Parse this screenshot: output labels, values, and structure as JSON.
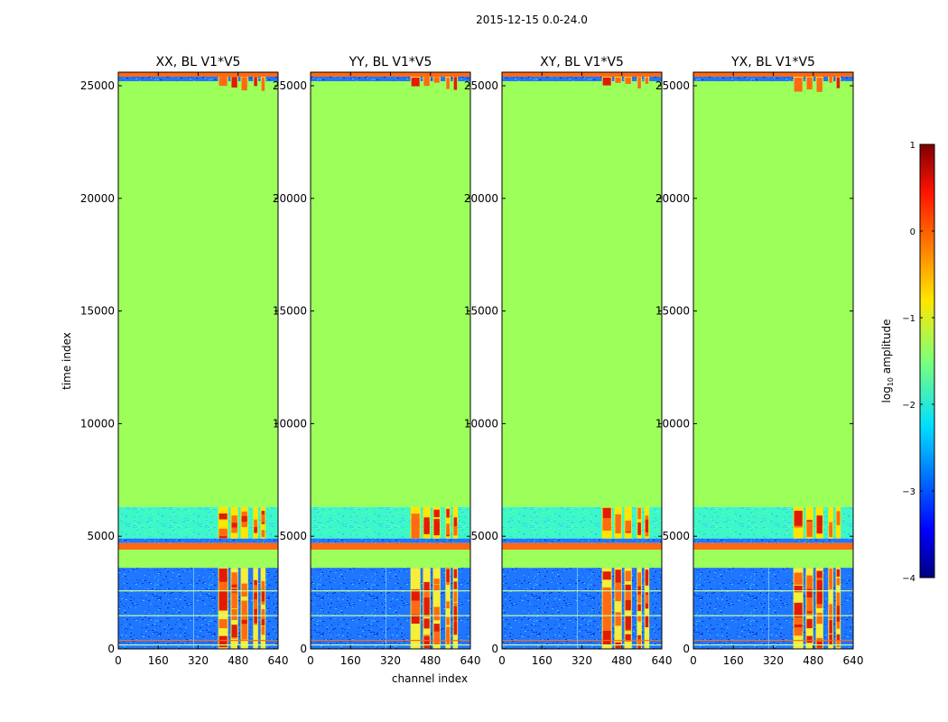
{
  "colors": {
    "background": "#ffffff",
    "green": "#9cff5a",
    "orange": "#ff6a13",
    "yellow": "#ffe600",
    "red": "#e11b08",
    "cyan": "#3cf7c8",
    "blue_dark": "#0a2cd6",
    "blue_mid": "#1f76ff",
    "blue_light": "#37c7ff",
    "axis": "#000000"
  },
  "chart_data": {
    "type": "heatmap",
    "suptitle": "2015-12-15 0.0-24.0",
    "xlabel": "channel index",
    "ylabel": "time index",
    "xlim": [
      0,
      640
    ],
    "ylim": [
      0,
      25600
    ],
    "xticks": [
      0,
      160,
      320,
      480,
      640
    ],
    "yticks": [
      0,
      5000,
      10000,
      15000,
      20000,
      25000
    ],
    "panels": [
      {
        "name": "XX",
        "title": "XX, BL V1*V5"
      },
      {
        "name": "YY",
        "title": "YY, BL V1*V5"
      },
      {
        "name": "XY",
        "title": "XY, BL V1*V5"
      },
      {
        "name": "YX",
        "title": "YX, BL V1*V5"
      }
    ],
    "bands": [
      {
        "from": 25400,
        "to": 25600,
        "level": "orange"
      },
      {
        "from": 25200,
        "to": 25400,
        "level": "noise"
      },
      {
        "from": 6300,
        "to": 25200,
        "level": "green"
      },
      {
        "from": 4900,
        "to": 6300,
        "level": "cyan"
      },
      {
        "from": 4700,
        "to": 4900,
        "level": "noise"
      },
      {
        "from": 4400,
        "to": 4700,
        "level": "orange"
      },
      {
        "from": 3600,
        "to": 4400,
        "level": "green"
      },
      {
        "from": 0,
        "to": 3600,
        "level": "noise"
      }
    ],
    "rfi_channels": [
      [
        400,
        440
      ],
      [
        450,
        480
      ],
      [
        490,
        520
      ],
      [
        540,
        560
      ],
      [
        570,
        590
      ]
    ],
    "colorbar": {
      "label_prefix": "log",
      "label_sub": "10",
      "label_suffix": " amplitude",
      "range": [
        -4,
        1
      ],
      "ticks": [
        1,
        0,
        -1,
        -2,
        -3,
        -4
      ],
      "tick_labels": [
        "1",
        "0",
        "−1",
        "−2",
        "−3",
        "−4"
      ],
      "colormap": "jet"
    }
  }
}
